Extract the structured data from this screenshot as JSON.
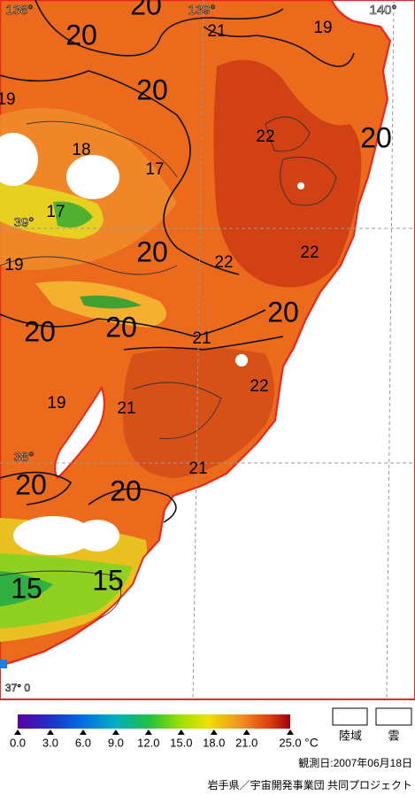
{
  "map": {
    "coordinate_labels": [
      "138°",
      "139°",
      "140°",
      "39°",
      "38°",
      "37° 0"
    ],
    "contour_labels": [
      "20",
      "20",
      "21",
      "19",
      "19",
      "20",
      "22",
      "20",
      "18",
      "17",
      "17",
      "20",
      "22",
      "22",
      "19",
      "20",
      "20",
      "20",
      "21",
      "22",
      "19",
      "21",
      "21",
      "20",
      "20",
      "15",
      "15"
    ]
  },
  "colorbar": {
    "ticks": [
      {
        "value": 0,
        "label": "0.0"
      },
      {
        "value": 3,
        "label": "3.0"
      },
      {
        "value": 6,
        "label": "6.0"
      },
      {
        "value": 9,
        "label": "9.0"
      },
      {
        "value": 12,
        "label": "12.0"
      },
      {
        "value": 15,
        "label": "15.0"
      },
      {
        "value": 18,
        "label": "18.0"
      },
      {
        "value": 21,
        "label": "21.0"
      },
      {
        "value": 25,
        "label": "25.0"
      }
    ],
    "unit": "°C"
  },
  "legend": [
    "陸域",
    "雲"
  ],
  "date": "観測日:2007年06月18日",
  "credit": "岩手県／宇宙開発事業団 共同プロジェクト"
}
